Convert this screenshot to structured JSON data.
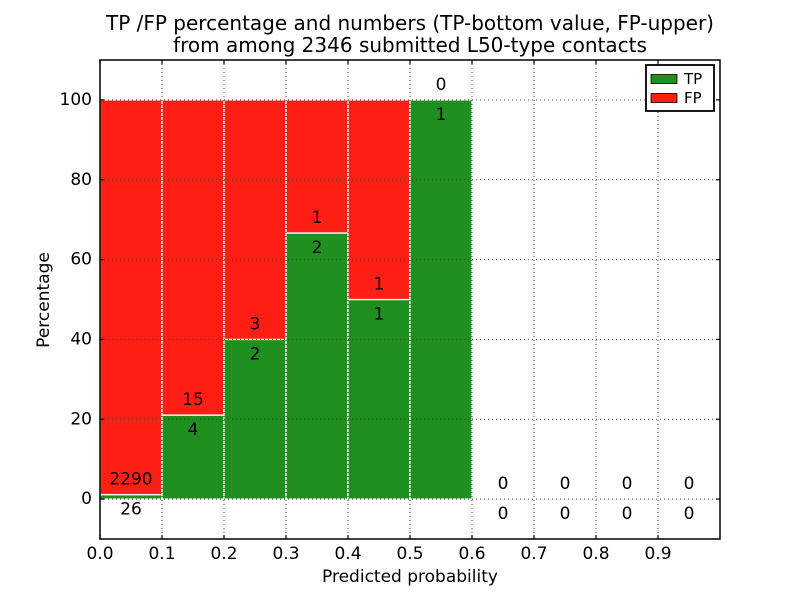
{
  "chart_data": {
    "type": "bar",
    "stacked": true,
    "title_line1": "TP /FP percentage and numbers (TP-bottom value, FP-upper)",
    "title_line2": "from among 2346 submitted L50-type contacts",
    "xlabel": "Predicted probability",
    "ylabel": "Percentage",
    "total_contacts": 2346,
    "xlim": [
      0.0,
      1.0
    ],
    "ylim": [
      -10,
      110
    ],
    "x_tick_values": [
      0.0,
      0.1,
      0.2,
      0.3,
      0.4,
      0.5,
      0.6,
      0.7,
      0.8,
      0.9
    ],
    "x_tick_labels": [
      "0.0",
      "0.1",
      "0.2",
      "0.3",
      "0.4",
      "0.5",
      "0.6",
      "0.7",
      "0.8",
      "0.9"
    ],
    "y_tick_values": [
      0,
      20,
      40,
      60,
      80,
      100
    ],
    "y_tick_labels": [
      "0",
      "20",
      "40",
      "60",
      "80",
      "100"
    ],
    "grid": "dotted",
    "legend": {
      "position": "upper-right",
      "entries": [
        {
          "label": "TP",
          "color": "#1f8f1f"
        },
        {
          "label": "FP",
          "color": "#ff1f14"
        }
      ]
    },
    "bins": [
      {
        "x0": 0.0,
        "x1": 0.1,
        "tp": 26,
        "fp": 2290
      },
      {
        "x0": 0.1,
        "x1": 0.2,
        "tp": 4,
        "fp": 15
      },
      {
        "x0": 0.2,
        "x1": 0.3,
        "tp": 2,
        "fp": 3
      },
      {
        "x0": 0.3,
        "x1": 0.4,
        "tp": 2,
        "fp": 1
      },
      {
        "x0": 0.4,
        "x1": 0.5,
        "tp": 1,
        "fp": 1
      },
      {
        "x0": 0.5,
        "x1": 0.6,
        "tp": 1,
        "fp": 0
      },
      {
        "x0": 0.6,
        "x1": 0.7,
        "tp": 0,
        "fp": 0
      },
      {
        "x0": 0.7,
        "x1": 0.8,
        "tp": 0,
        "fp": 0
      },
      {
        "x0": 0.8,
        "x1": 0.9,
        "tp": 0,
        "fp": 0
      },
      {
        "x0": 0.9,
        "x1": 1.0,
        "tp": 0,
        "fp": 0
      }
    ]
  },
  "colors": {
    "background": "#ffffff",
    "frame": "#000000",
    "grid": "#444444",
    "text": "#000000",
    "bar_edge": "#ffffff"
  }
}
